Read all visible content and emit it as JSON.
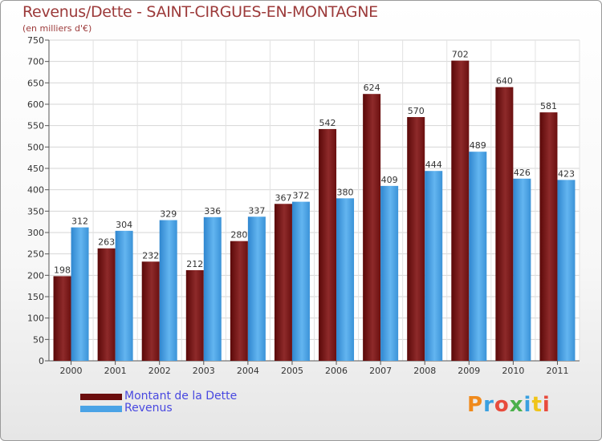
{
  "header": {
    "title": "Revenus/Dette - SAINT-CIRGUES-EN-MONTAGNE",
    "subtitle": "(en milliers d'€)"
  },
  "colors": {
    "dette": "#7b1a1a",
    "revenus": "#4aa3e6",
    "title": "#9c3a3a",
    "legend_text": "#4848e0"
  },
  "legend": {
    "items": [
      {
        "label": "Montant de la Dette",
        "color": "#6b0d0d"
      },
      {
        "label": "Revenus",
        "color": "#4aa3e6"
      }
    ]
  },
  "logo": {
    "text": "Proxiti"
  },
  "chart_data": {
    "type": "bar",
    "title": "Revenus/Dette - SAINT-CIRGUES-EN-MONTAGNE",
    "subtitle": "(en milliers d'€)",
    "xlabel": "",
    "ylabel": "",
    "categories": [
      "2000",
      "2001",
      "2002",
      "2003",
      "2004",
      "2005",
      "2006",
      "2007",
      "2008",
      "2009",
      "2010",
      "2011"
    ],
    "series": [
      {
        "name": "Montant de la Dette",
        "values": [
          198,
          263,
          232,
          212,
          280,
          367,
          542,
          624,
          570,
          702,
          640,
          581
        ]
      },
      {
        "name": "Revenus",
        "values": [
          312,
          304,
          329,
          336,
          337,
          372,
          380,
          409,
          444,
          489,
          426,
          423
        ]
      }
    ],
    "ylim": [
      0,
      750
    ],
    "yticks": [
      0,
      50,
      100,
      150,
      200,
      250,
      300,
      350,
      400,
      450,
      500,
      550,
      600,
      650,
      700,
      750
    ],
    "grid": true,
    "legend_position": "bottom-left"
  }
}
